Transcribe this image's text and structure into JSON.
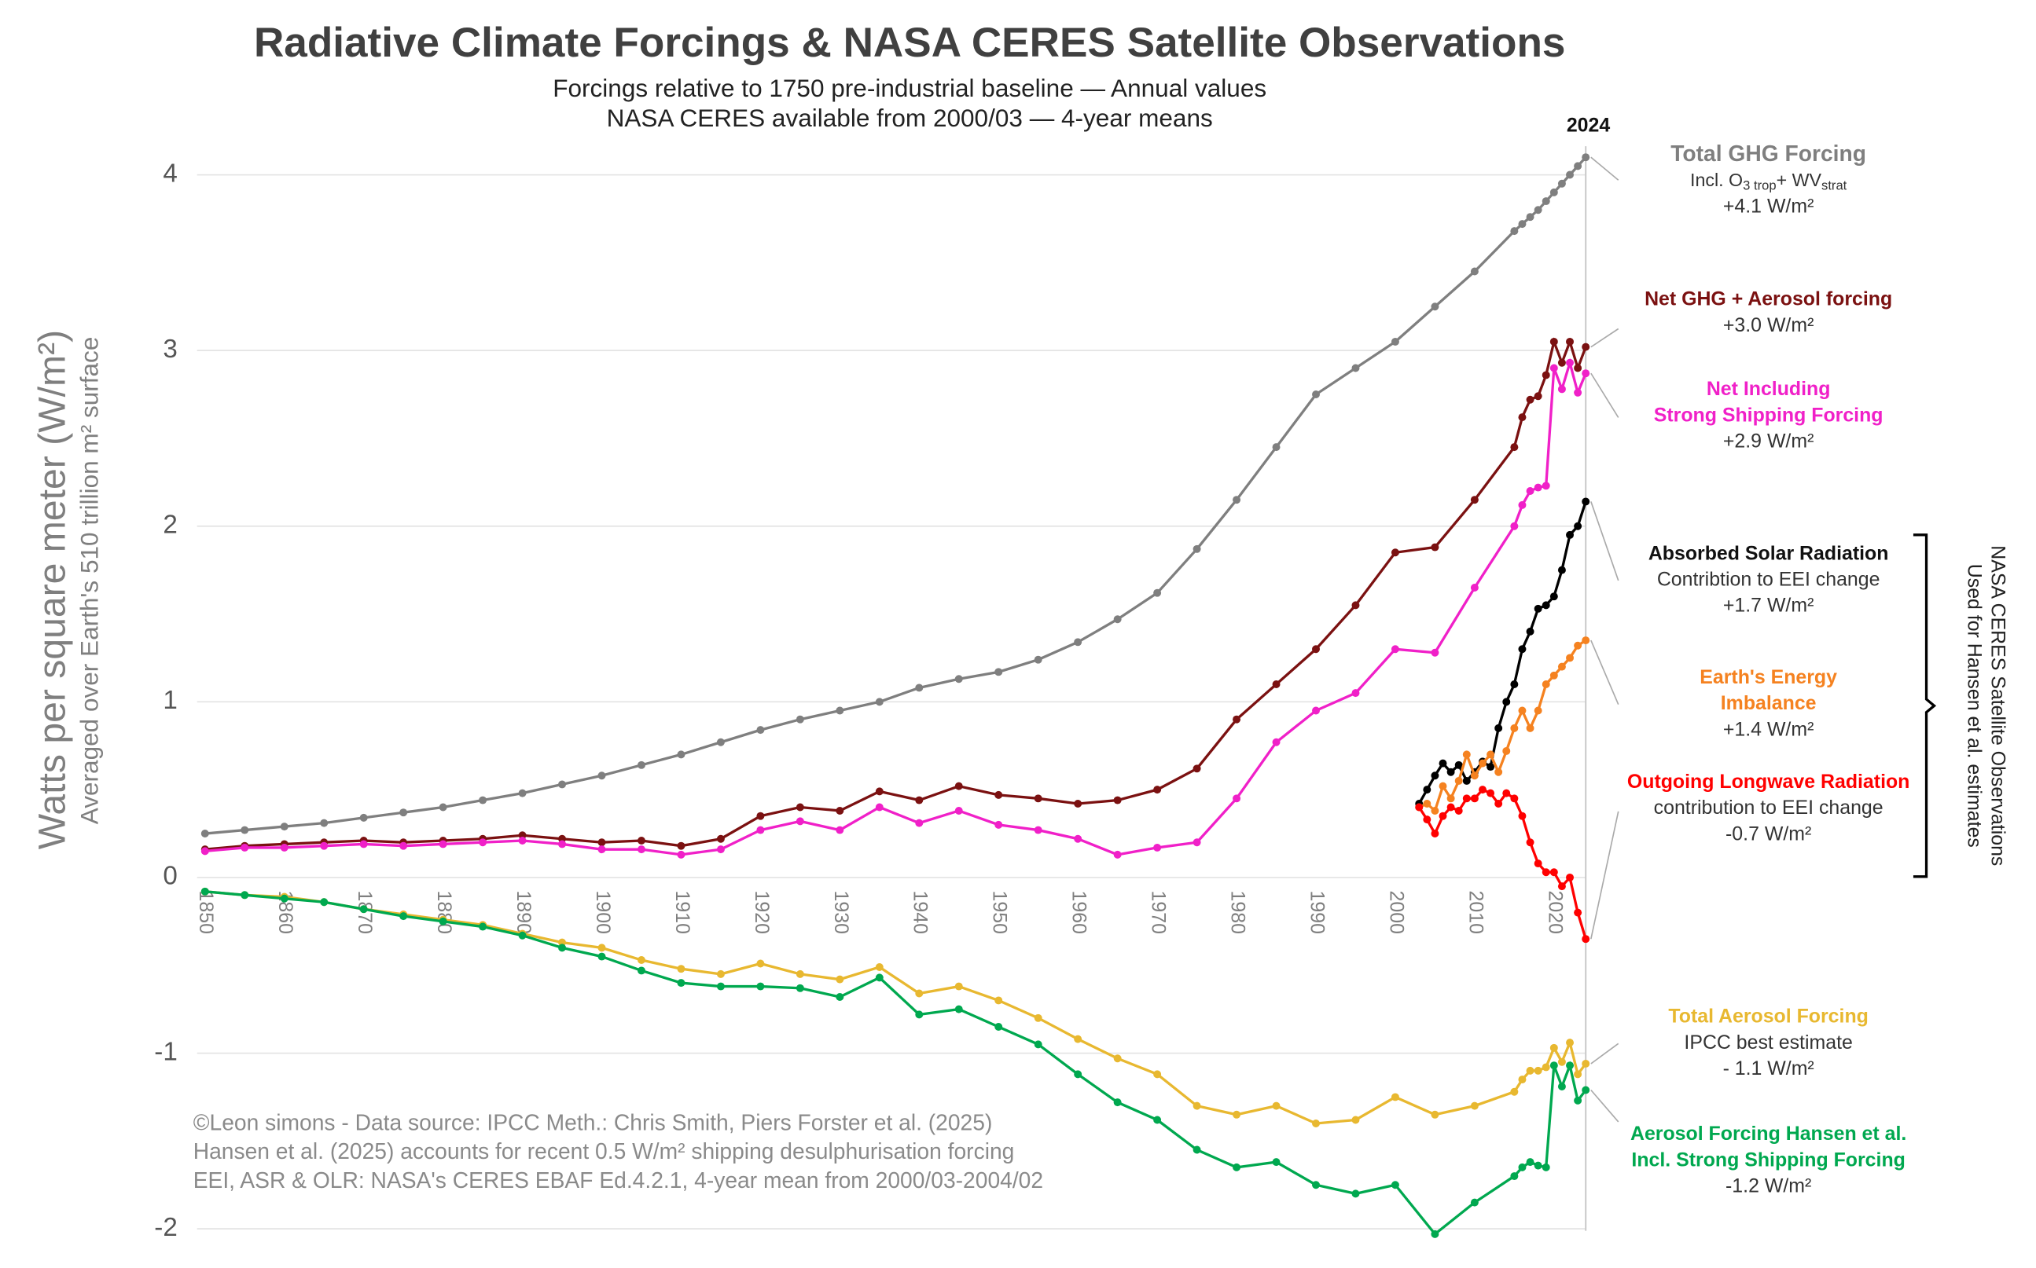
{
  "chart_data": {
    "type": "line",
    "title": "Radiative Climate Forcings & NASA CERES Satellite Observations",
    "subtitle": [
      "Forcings relative to 1750 pre-industrial baseline — Annual values",
      "NASA CERES available from 2000/03 — 4-year means"
    ],
    "y_label": "Watts per square meter (W/m²)",
    "y_sublabel": "Averaged over Earth's 510 trillion m² surface",
    "xlim": [
      1849,
      2024
    ],
    "xticks": [
      1850,
      1860,
      1870,
      1880,
      1890,
      1900,
      1910,
      1920,
      1930,
      1940,
      1950,
      1960,
      1970,
      1980,
      1990,
      2000,
      2010,
      2020
    ],
    "ylim": [
      -2.1,
      4.25
    ],
    "yticks": [
      -2,
      -1,
      0,
      1,
      2,
      3,
      4
    ],
    "grid": true,
    "highlight_year": 2024,
    "bracket_label": [
      "NASA CERES Satellite Observations",
      "Used for Hansen et al. estimates"
    ],
    "credits": [
      "©Leon simons - Data source: IPCC Meth.: Chris Smith, Piers Forster et al. (2025)",
      "Hansen et al. (2025) accounts for recent 0.5 W/m² shipping desulphurisation forcing",
      "EEI, ASR & OLR: NASA's CERES EBAF Ed.4.2.1, 4-year mean from 2000/03-2004/02"
    ],
    "series": [
      {
        "label": [
          "Total GHG Forcing"
        ],
        "subnote": [
          "Incl. O",
          "3 trop",
          "+ WV",
          "strat"
        ],
        "notes": [
          "+4.1 W/m²"
        ],
        "color": "#7f7f7f",
        "x": [
          1850,
          1855,
          1860,
          1865,
          1870,
          1875,
          1880,
          1885,
          1890,
          1895,
          1900,
          1905,
          1910,
          1915,
          1920,
          1925,
          1930,
          1935,
          1940,
          1945,
          1950,
          1955,
          1960,
          1965,
          1970,
          1975,
          1980,
          1985,
          1990,
          1995,
          2000,
          2005,
          2010,
          2015,
          2016,
          2017,
          2018,
          2019,
          2020,
          2021,
          2022,
          2023,
          2024
        ],
        "values": [
          0.25,
          0.27,
          0.29,
          0.31,
          0.34,
          0.37,
          0.4,
          0.44,
          0.48,
          0.53,
          0.58,
          0.64,
          0.7,
          0.77,
          0.84,
          0.9,
          0.95,
          1.0,
          1.08,
          1.13,
          1.17,
          1.24,
          1.34,
          1.47,
          1.62,
          1.87,
          2.15,
          2.45,
          2.75,
          2.9,
          3.05,
          3.25,
          3.45,
          3.68,
          3.72,
          3.76,
          3.8,
          3.85,
          3.9,
          3.95,
          4.0,
          4.05,
          4.1
        ]
      },
      {
        "label": [
          "Net GHG + Aerosol forcing"
        ],
        "notes": [
          "+3.0 W/m²"
        ],
        "color": "#7b1111",
        "x": [
          1850,
          1855,
          1860,
          1865,
          1870,
          1875,
          1880,
          1885,
          1890,
          1895,
          1900,
          1905,
          1910,
          1915,
          1920,
          1925,
          1930,
          1935,
          1940,
          1945,
          1950,
          1955,
          1960,
          1965,
          1970,
          1975,
          1980,
          1985,
          1990,
          1995,
          2000,
          2005,
          2010,
          2015,
          2016,
          2017,
          2018,
          2019,
          2020,
          2021,
          2022,
          2023,
          2024
        ],
        "values": [
          0.16,
          0.18,
          0.19,
          0.2,
          0.21,
          0.2,
          0.21,
          0.22,
          0.24,
          0.22,
          0.2,
          0.21,
          0.18,
          0.22,
          0.35,
          0.4,
          0.38,
          0.49,
          0.44,
          0.52,
          0.47,
          0.45,
          0.42,
          0.44,
          0.5,
          0.62,
          0.9,
          1.1,
          1.3,
          1.55,
          1.85,
          1.88,
          2.15,
          2.45,
          2.62,
          2.72,
          2.74,
          2.86,
          3.05,
          2.93,
          3.05,
          2.9,
          3.02
        ]
      },
      {
        "label": [
          "Net Including",
          "Strong Shipping Forcing"
        ],
        "notes": [
          "+2.9 W/m²"
        ],
        "color": "#f020c8",
        "x": [
          1850,
          1855,
          1860,
          1865,
          1870,
          1875,
          1880,
          1885,
          1890,
          1895,
          1900,
          1905,
          1910,
          1915,
          1920,
          1925,
          1930,
          1935,
          1940,
          1945,
          1950,
          1955,
          1960,
          1965,
          1970,
          1975,
          1980,
          1985,
          1990,
          1995,
          2000,
          2005,
          2010,
          2015,
          2016,
          2017,
          2018,
          2019,
          2020,
          2021,
          2022,
          2023,
          2024
        ],
        "values": [
          0.15,
          0.17,
          0.17,
          0.18,
          0.19,
          0.18,
          0.19,
          0.2,
          0.21,
          0.19,
          0.16,
          0.16,
          0.13,
          0.16,
          0.27,
          0.32,
          0.27,
          0.4,
          0.31,
          0.38,
          0.3,
          0.27,
          0.22,
          0.13,
          0.17,
          0.2,
          0.45,
          0.77,
          0.95,
          1.05,
          1.3,
          1.28,
          1.65,
          2.0,
          2.12,
          2.2,
          2.22,
          2.23,
          2.9,
          2.78,
          2.93,
          2.76,
          2.87
        ]
      },
      {
        "label": [
          "Absorbed Solar Radiation"
        ],
        "notes": [
          "Contribtion to EEI change",
          "+1.7 W/m²"
        ],
        "color": "#000000",
        "x": [
          2003,
          2004,
          2005,
          2006,
          2007,
          2008,
          2009,
          2010,
          2011,
          2012,
          2013,
          2014,
          2015,
          2016,
          2017,
          2018,
          2019,
          2020,
          2021,
          2022,
          2023,
          2024
        ],
        "values": [
          0.42,
          0.5,
          0.58,
          0.65,
          0.6,
          0.64,
          0.55,
          0.6,
          0.66,
          0.63,
          0.85,
          1.0,
          1.1,
          1.3,
          1.4,
          1.53,
          1.55,
          1.6,
          1.75,
          1.95,
          2.0,
          2.14
        ]
      },
      {
        "label": [
          "Earth's Energy",
          "Imbalance"
        ],
        "notes": [
          "+1.4 W/m²"
        ],
        "color": "#f58220",
        "x": [
          2003,
          2004,
          2005,
          2006,
          2007,
          2008,
          2009,
          2010,
          2011,
          2012,
          2013,
          2014,
          2015,
          2016,
          2017,
          2018,
          2019,
          2020,
          2021,
          2022,
          2023,
          2024
        ],
        "values": [
          0.4,
          0.42,
          0.38,
          0.52,
          0.45,
          0.55,
          0.7,
          0.58,
          0.65,
          0.7,
          0.6,
          0.72,
          0.85,
          0.95,
          0.85,
          0.95,
          1.1,
          1.15,
          1.2,
          1.25,
          1.32,
          1.35
        ]
      },
      {
        "label": [
          "Outgoing Longwave Radiation"
        ],
        "notes": [
          "contribution to EEI change",
          "-0.7 W/m²"
        ],
        "color": "#ff0000",
        "x": [
          2003,
          2004,
          2005,
          2006,
          2007,
          2008,
          2009,
          2010,
          2011,
          2012,
          2013,
          2014,
          2015,
          2016,
          2017,
          2018,
          2019,
          2020,
          2021,
          2022,
          2023,
          2024
        ],
        "values": [
          0.4,
          0.33,
          0.25,
          0.35,
          0.4,
          0.38,
          0.45,
          0.45,
          0.5,
          0.48,
          0.42,
          0.48,
          0.45,
          0.35,
          0.2,
          0.08,
          0.03,
          0.03,
          -0.05,
          0.0,
          -0.2,
          -0.35
        ]
      },
      {
        "label": [
          "Total Aerosol Forcing"
        ],
        "notes": [
          "IPCC best estimate",
          "- 1.1 W/m²"
        ],
        "color": "#e8b830",
        "x": [
          1850,
          1855,
          1860,
          1865,
          1870,
          1875,
          1880,
          1885,
          1890,
          1895,
          1900,
          1905,
          1910,
          1915,
          1920,
          1925,
          1930,
          1935,
          1940,
          1945,
          1950,
          1955,
          1960,
          1965,
          1970,
          1975,
          1980,
          1985,
          1990,
          1995,
          2000,
          2005,
          2010,
          2015,
          2016,
          2017,
          2018,
          2019,
          2020,
          2021,
          2022,
          2023,
          2024
        ],
        "values": [
          -0.08,
          -0.1,
          -0.11,
          -0.14,
          -0.18,
          -0.21,
          -0.24,
          -0.27,
          -0.32,
          -0.37,
          -0.4,
          -0.47,
          -0.52,
          -0.55,
          -0.49,
          -0.55,
          -0.58,
          -0.51,
          -0.66,
          -0.62,
          -0.7,
          -0.8,
          -0.92,
          -1.03,
          -1.12,
          -1.3,
          -1.35,
          -1.3,
          -1.4,
          -1.38,
          -1.25,
          -1.35,
          -1.3,
          -1.22,
          -1.15,
          -1.1,
          -1.1,
          -1.08,
          -0.97,
          -1.05,
          -0.94,
          -1.12,
          -1.06
        ]
      },
      {
        "label": [
          "Aerosol Forcing Hansen et al.",
          "Incl. Strong Shipping Forcing"
        ],
        "notes": [
          "-1.2 W/m²"
        ],
        "color": "#00a84f",
        "x": [
          1850,
          1855,
          1860,
          1865,
          1870,
          1875,
          1880,
          1885,
          1890,
          1895,
          1900,
          1905,
          1910,
          1915,
          1920,
          1925,
          1930,
          1935,
          1940,
          1945,
          1950,
          1955,
          1960,
          1965,
          1970,
          1975,
          1980,
          1985,
          1990,
          1995,
          2000,
          2005,
          2010,
          2015,
          2016,
          2017,
          2018,
          2019,
          2020,
          2021,
          2022,
          2023,
          2024
        ],
        "values": [
          -0.08,
          -0.1,
          -0.12,
          -0.14,
          -0.18,
          -0.22,
          -0.25,
          -0.28,
          -0.33,
          -0.4,
          -0.45,
          -0.53,
          -0.6,
          -0.62,
          -0.62,
          -0.63,
          -0.68,
          -0.57,
          -0.78,
          -0.75,
          -0.85,
          -0.95,
          -1.12,
          -1.28,
          -1.38,
          -1.55,
          -1.65,
          -1.62,
          -1.75,
          -1.8,
          -1.75,
          -2.03,
          -1.85,
          -1.7,
          -1.65,
          -1.62,
          -1.64,
          -1.65,
          -1.07,
          -1.19,
          -1.07,
          -1.27,
          -1.21
        ]
      }
    ]
  }
}
